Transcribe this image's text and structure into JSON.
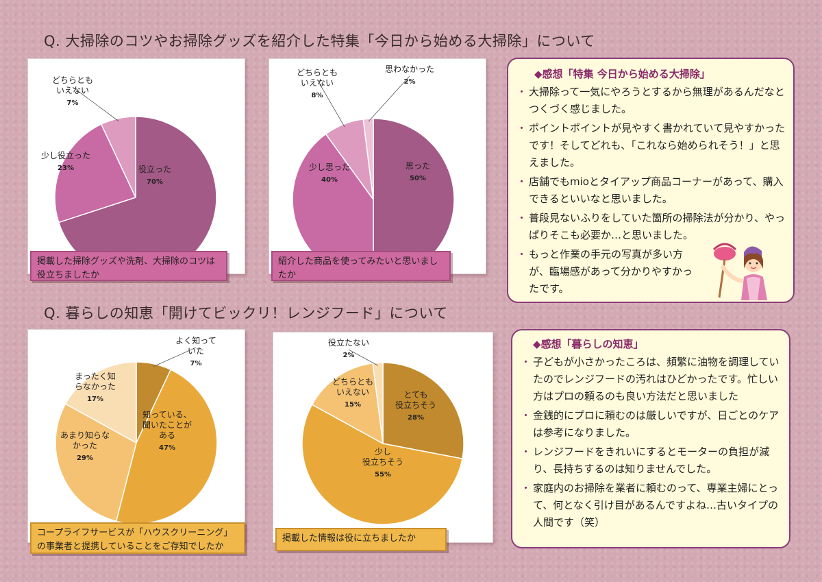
{
  "section1": {
    "heading": "Q.  大掃除のコツやお掃除グッズを紹介した特集「今日から始める大掃除」について",
    "comments": {
      "title": "◆感想「特集  今日から始める大掃除」",
      "items": [
        "大掃除って一気にやろうとするから無理があるんだなとつくづく感じました。",
        "ポイントポイントが見やすく書かれていて見やすかったです！そしてどれも、「これなら始められそう！」と思えました。",
        "店舗でもmioとタイアップ商品コーナーがあって、購入できるといいなと思いました。",
        "普段見ないふりをしていた箇所の掃除法が分かり、やっぱりそこも必要か…と思いました。",
        "もっと作業の手元の写真が多い方が、臨場感があって分かりやすかったです。"
      ]
    }
  },
  "section2": {
    "heading": "Q.  暮らしの知恵「開けてビックリ！レンジフード」について",
    "comments": {
      "title": "◆感想「暮らしの知恵」",
      "items": [
        "子どもが小さかったころは、頻繁に油物を調理していたのでレンジフードの汚れはひどかったです。忙しい方はプロの頼るのも良い方法だと思いました",
        "金銭的にプロに頼むのは厳しいですが、日ごとのケアは参考になりました。",
        "レンジフードをきれいにするとモーターの負担が減り、長持ちするのは知りませんでした。",
        "家庭内のお掃除を業者に頼むのって、専業主婦にとって、何となく引け目があるんですよね…古いタイプの人間です（笑）"
      ]
    }
  },
  "chart_data": [
    {
      "type": "pie",
      "question": "掲載した掃除グッズや洗剤、大掃除のコツは役立ちましたか",
      "categories": [
        "役立った",
        "少し役立った",
        "どちらともいえない"
      ],
      "values": [
        70,
        23,
        7
      ],
      "display_labels": [
        "役立った",
        "少し役立った",
        "どちらとも\nいえない"
      ],
      "colors": [
        "#a35a86",
        "#c86aa4",
        "#dd9bbf"
      ]
    },
    {
      "type": "pie",
      "question": "紹介した商品を使ってみたいと思いましたか",
      "categories": [
        "思った",
        "少し思った",
        "どちらともいえない",
        "思わなかった"
      ],
      "values": [
        50,
        40,
        8,
        2
      ],
      "display_labels": [
        "思った",
        "少し思った",
        "どちらとも\nいえない",
        "思わなかった"
      ],
      "colors": [
        "#a35a86",
        "#c86aa4",
        "#dd9bbf",
        "#ecc2d6"
      ]
    },
    {
      "type": "pie",
      "question": "コープライフサービスが「ハウスクリーニング」の事業者と提携していることをご存知でしたか",
      "categories": [
        "よく知っていた",
        "知っている、聞いたことがある",
        "あまり知らなかった",
        "まったく知らなかった"
      ],
      "values": [
        7,
        47,
        29,
        17
      ],
      "display_labels": [
        "よく知って\nいた",
        "知っている、\n聞いたことが\nある",
        "あまり知らな\nかった",
        "まったく知\nらなかった"
      ],
      "colors": [
        "#c18a2e",
        "#e9a93a",
        "#f4c272",
        "#f9ddb3"
      ]
    },
    {
      "type": "pie",
      "question": "掲載した情報は役に立ちましたか",
      "categories": [
        "とても役立ちそう",
        "少し役立ちそう",
        "どちらともいえない",
        "役立たない"
      ],
      "values": [
        28,
        55,
        15,
        2
      ],
      "display_labels": [
        "とても\n役立ちそう",
        "少し\n役立ちそう",
        "どちらとも\nいえない",
        "役立たない"
      ],
      "colors": [
        "#c18a2e",
        "#e9a93a",
        "#f4c272",
        "#f9ddb3"
      ]
    }
  ]
}
